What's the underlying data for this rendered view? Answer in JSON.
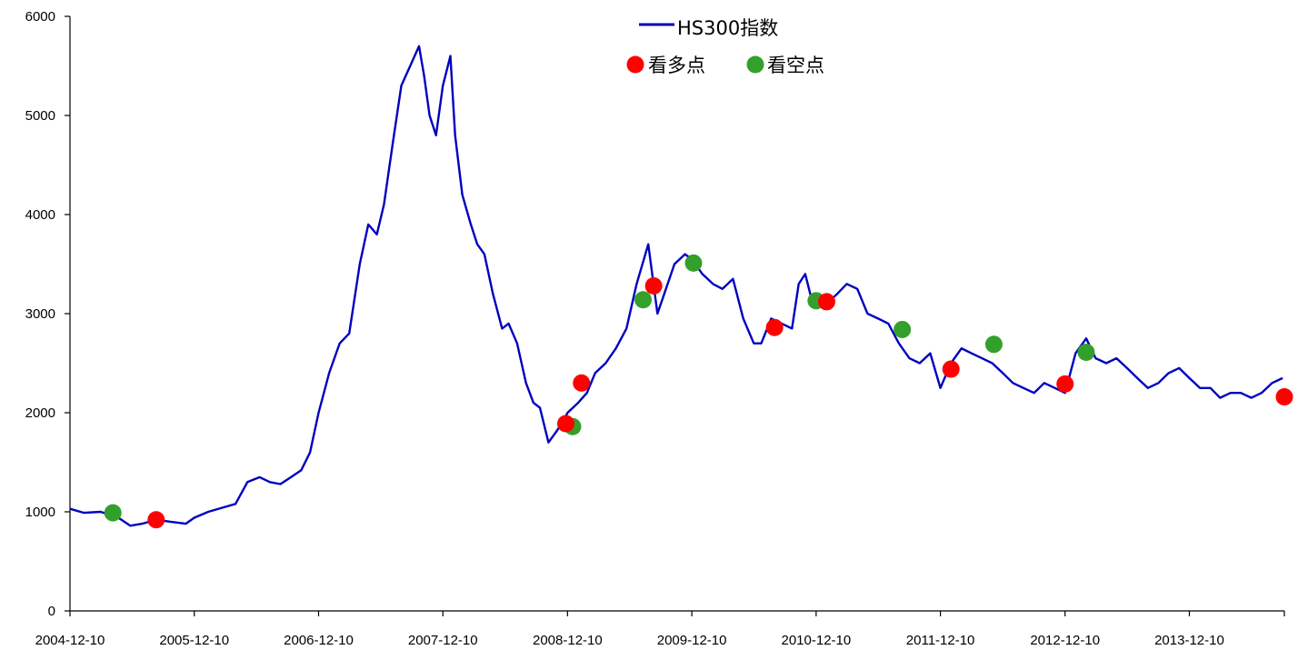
{
  "chart_data": {
    "type": "line",
    "title": "",
    "xlabel": "",
    "ylabel": "",
    "xlim": [
      "2004-12-10",
      "2014-09-15"
    ],
    "ylim": [
      0,
      6000
    ],
    "y_ticks": [
      0,
      1000,
      2000,
      3000,
      4000,
      5000,
      6000
    ],
    "x_ticks": [
      "2004-12-10",
      "2005-12-10",
      "2006-12-10",
      "2007-12-10",
      "2008-12-10",
      "2009-12-10",
      "2010-12-10",
      "2011-12-10",
      "2012-12-10",
      "2013-12-10"
    ],
    "grid": false,
    "legend_position": "top-center",
    "colors": {
      "line": "#0000c0",
      "bull": "#ff0000",
      "bear": "#33a02c"
    },
    "series": [
      {
        "name": "HS300指数",
        "type": "line",
        "x": [
          "2004-12-10",
          "2005-01-20",
          "2005-03-10",
          "2005-05-01",
          "2005-06-05",
          "2005-07-10",
          "2005-08-20",
          "2005-10-01",
          "2005-11-15",
          "2005-12-10",
          "2006-01-20",
          "2006-03-01",
          "2006-04-10",
          "2006-05-15",
          "2006-06-20",
          "2006-07-20",
          "2006-08-20",
          "2006-09-20",
          "2006-10-20",
          "2006-11-15",
          "2006-12-10",
          "2007-01-10",
          "2007-02-10",
          "2007-03-10",
          "2007-04-10",
          "2007-05-05",
          "2007-05-30",
          "2007-06-20",
          "2007-07-15",
          "2007-08-10",
          "2007-09-05",
          "2007-10-01",
          "2007-10-16",
          "2007-11-01",
          "2007-11-20",
          "2007-12-10",
          "2008-01-01",
          "2008-01-15",
          "2008-02-05",
          "2008-03-01",
          "2008-03-20",
          "2008-04-10",
          "2008-05-05",
          "2008-06-01",
          "2008-06-20",
          "2008-07-15",
          "2008-08-10",
          "2008-09-01",
          "2008-09-20",
          "2008-10-15",
          "2008-11-05",
          "2008-11-25",
          "2008-12-10",
          "2009-01-10",
          "2009-02-05",
          "2009-03-01",
          "2009-04-01",
          "2009-05-01",
          "2009-06-01",
          "2009-07-01",
          "2009-08-04",
          "2009-08-31",
          "2009-09-20",
          "2009-10-20",
          "2009-11-20",
          "2009-12-10",
          "2010-01-10",
          "2010-02-10",
          "2010-03-10",
          "2010-04-10",
          "2010-05-10",
          "2010-06-10",
          "2010-07-02",
          "2010-07-31",
          "2010-08-31",
          "2010-09-30",
          "2010-10-20",
          "2010-11-08",
          "2010-11-30",
          "2010-12-10",
          "2011-01-10",
          "2011-02-10",
          "2011-03-10",
          "2011-04-10",
          "2011-05-10",
          "2011-06-10",
          "2011-07-10",
          "2011-08-10",
          "2011-09-10",
          "2011-10-10",
          "2011-11-10",
          "2011-12-10",
          "2012-01-10",
          "2012-02-10",
          "2012-03-10",
          "2012-04-10",
          "2012-05-10",
          "2012-06-10",
          "2012-07-10",
          "2012-08-10",
          "2012-09-10",
          "2012-10-10",
          "2012-11-10",
          "2012-12-10",
          "2013-01-10",
          "2013-02-10",
          "2013-03-10",
          "2013-04-10",
          "2013-05-10",
          "2013-06-10",
          "2013-07-10",
          "2013-08-10",
          "2013-09-10",
          "2013-10-10",
          "2013-11-10",
          "2013-12-10",
          "2014-01-10",
          "2014-02-10",
          "2014-03-10",
          "2014-04-10",
          "2014-05-10",
          "2014-06-10",
          "2014-07-10",
          "2014-08-10",
          "2014-09-10"
        ],
        "y": [
          1030,
          990,
          1000,
          940,
          860,
          880,
          920,
          900,
          880,
          940,
          1000,
          1040,
          1080,
          1300,
          1350,
          1300,
          1280,
          1350,
          1420,
          1600,
          2000,
          2400,
          2700,
          2800,
          3500,
          3900,
          3800,
          4100,
          4700,
          5300,
          5500,
          5700,
          5400,
          5000,
          4800,
          5300,
          5600,
          4800,
          4200,
          3900,
          3700,
          3600,
          3200,
          2850,
          2900,
          2700,
          2300,
          2100,
          2050,
          1700,
          1800,
          1900,
          2000,
          2100,
          2200,
          2400,
          2500,
          2650,
          2850,
          3300,
          3700,
          3000,
          3200,
          3500,
          3600,
          3550,
          3400,
          3300,
          3250,
          3350,
          2950,
          2700,
          2700,
          2950,
          2900,
          2850,
          3300,
          3400,
          3100,
          3150,
          3100,
          3200,
          3300,
          3250,
          3000,
          2950,
          2900,
          2700,
          2550,
          2500,
          2600,
          2250,
          2500,
          2650,
          2600,
          2550,
          2500,
          2400,
          2300,
          2250,
          2200,
          2300,
          2250,
          2200,
          2600,
          2750,
          2550,
          2500,
          2550,
          2450,
          2350,
          2250,
          2300,
          2400,
          2450,
          2350,
          2250,
          2250,
          2150,
          2200,
          2200,
          2150,
          2200,
          2300,
          2350
        ]
      },
      {
        "name": "看多点",
        "type": "scatter",
        "points": [
          {
            "x": "2005-08-20",
            "y": 920
          },
          {
            "x": "2008-12-05",
            "y": 1890
          },
          {
            "x": "2009-01-20",
            "y": 2300
          },
          {
            "x": "2009-08-20",
            "y": 3280
          },
          {
            "x": "2010-08-10",
            "y": 2860
          },
          {
            "x": "2011-01-10",
            "y": 3120
          },
          {
            "x": "2012-01-10",
            "y": 2440
          },
          {
            "x": "2012-12-10",
            "y": 2290
          },
          {
            "x": "2014-09-15",
            "y": 2160
          }
        ]
      },
      {
        "name": "看空点",
        "type": "scatter",
        "points": [
          {
            "x": "2005-04-15",
            "y": 990
          },
          {
            "x": "2008-12-25",
            "y": 1860
          },
          {
            "x": "2009-07-20",
            "y": 3140
          },
          {
            "x": "2009-12-15",
            "y": 3510
          },
          {
            "x": "2010-12-10",
            "y": 3130
          },
          {
            "x": "2011-08-20",
            "y": 2840
          },
          {
            "x": "2012-05-15",
            "y": 2690
          },
          {
            "x": "2013-02-10",
            "y": 2610
          }
        ]
      }
    ]
  }
}
